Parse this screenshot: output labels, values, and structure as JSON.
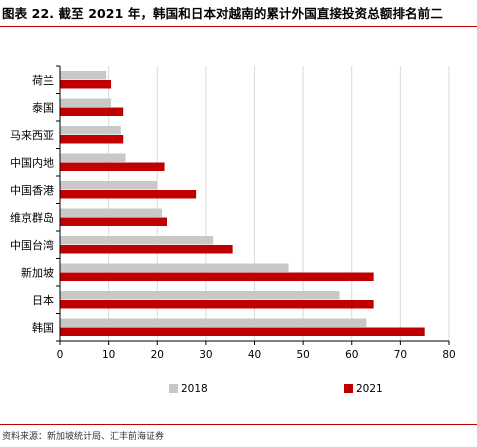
{
  "title": "图表 22. 截至 2021 年，韩国和日本对越南的累计外国直接投资总额排名前二",
  "source": "资料来源：新加坡统计局、汇丰前海证券",
  "colors": {
    "s2018": "#c8c8c8",
    "s2021": "#c00000",
    "grid": "#d9d9d9",
    "axis": "#000000"
  },
  "chart_data": {
    "type": "bar",
    "orientation": "horizontal",
    "categories": [
      "荷兰",
      "泰国",
      "马来西亚",
      "中国内地",
      "中国香港",
      "维京群岛",
      "中国台湾",
      "新加坡",
      "日本",
      "韩国"
    ],
    "series": [
      {
        "name": "2018",
        "values": [
          9.5,
          10.5,
          12.5,
          13.5,
          20,
          21,
          31.5,
          47,
          57.5,
          63
        ]
      },
      {
        "name": "2021",
        "values": [
          10.5,
          13,
          13,
          21.5,
          28,
          22,
          35.5,
          64.5,
          64.5,
          75
        ]
      }
    ],
    "xlim": [
      0,
      80
    ],
    "xticks": [
      "0",
      "10",
      "20",
      "30",
      "40",
      "50",
      "60",
      "70",
      "80"
    ],
    "grid": "vertical",
    "legend": "bottom"
  }
}
